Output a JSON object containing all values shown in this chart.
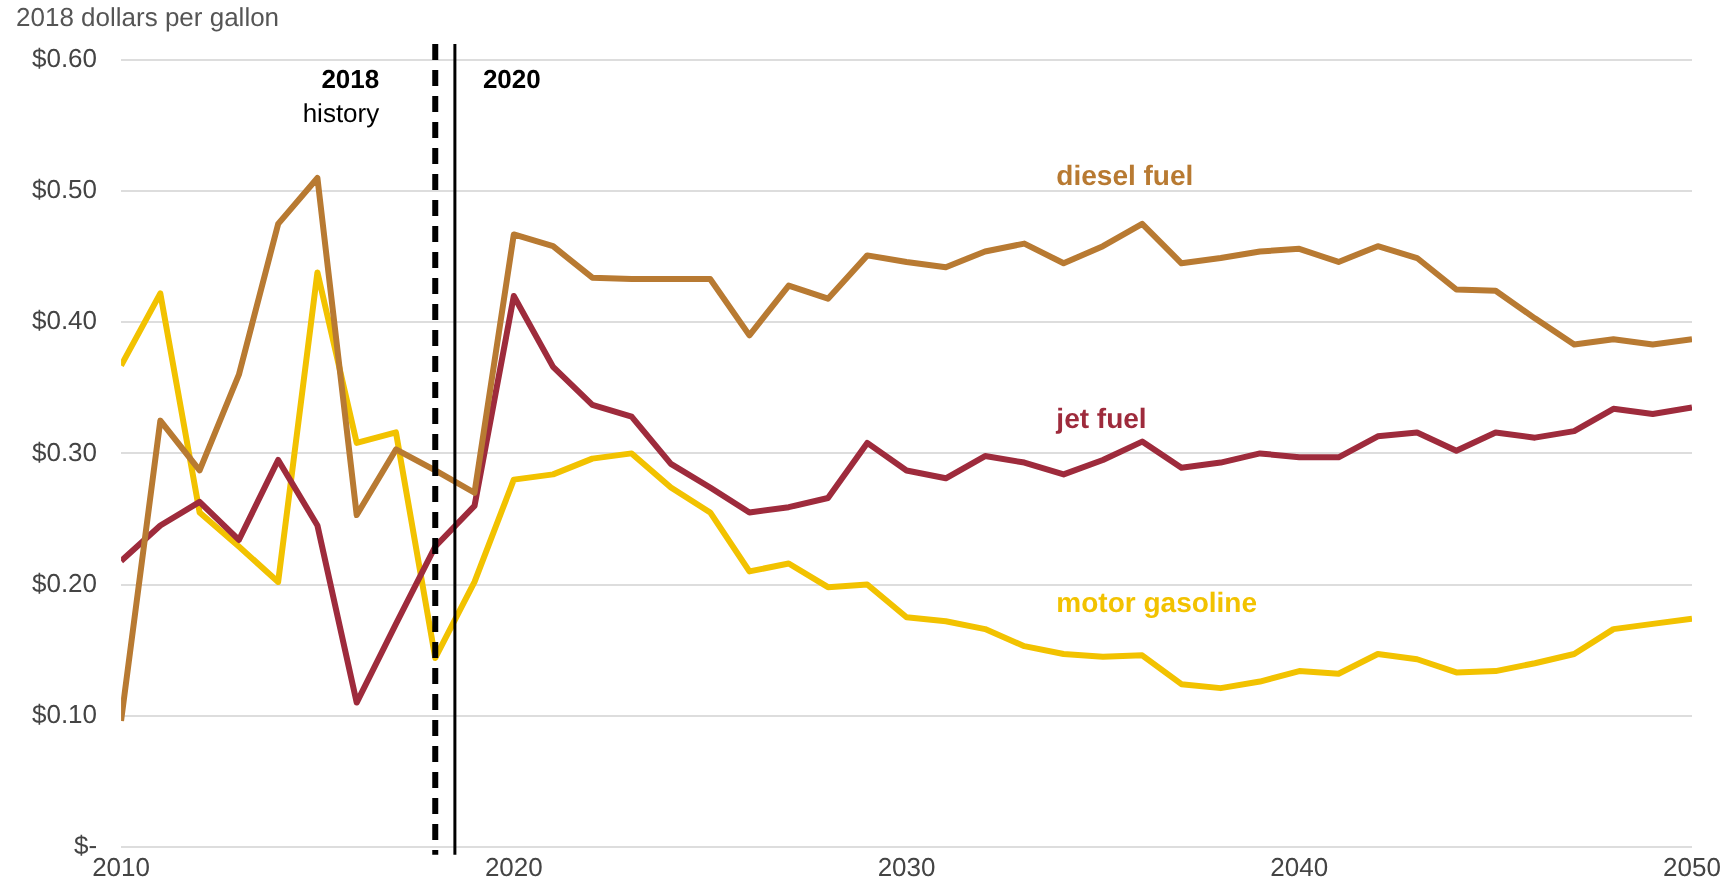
{
  "chart_data": {
    "type": "line",
    "ylabel": "2018 dollars per gallon",
    "x": [
      2010,
      2011,
      2012,
      2013,
      2014,
      2015,
      2016,
      2017,
      2018,
      2019,
      2020,
      2021,
      2022,
      2023,
      2024,
      2025,
      2026,
      2027,
      2028,
      2029,
      2030,
      2031,
      2032,
      2033,
      2034,
      2035,
      2036,
      2037,
      2038,
      2039,
      2040,
      2041,
      2042,
      2043,
      2044,
      2045,
      2046,
      2047,
      2048,
      2049,
      2050
    ],
    "series": [
      {
        "name": "diesel fuel",
        "color": "#b87a32",
        "values": [
          0.096,
          0.325,
          0.287,
          0.36,
          0.475,
          0.51,
          0.253,
          0.303,
          0.287,
          0.27,
          0.467,
          0.458,
          0.434,
          0.433,
          0.433,
          0.433,
          0.39,
          0.428,
          0.418,
          0.451,
          0.446,
          0.442,
          0.454,
          0.46,
          0.445,
          0.458,
          0.475,
          0.445,
          0.449,
          0.454,
          0.456,
          0.446,
          0.458,
          0.449,
          0.425,
          0.424,
          0.403,
          0.383,
          0.387,
          0.383,
          0.387
        ]
      },
      {
        "name": "jet fuel",
        "color": "#9e2b3c",
        "values": [
          0.218,
          0.245,
          0.263,
          0.234,
          0.295,
          0.245,
          0.11,
          0.17,
          0.229,
          0.26,
          0.42,
          0.366,
          0.337,
          0.328,
          0.292,
          0.274,
          0.255,
          0.259,
          0.266,
          0.308,
          0.287,
          0.281,
          0.298,
          0.293,
          0.284,
          0.295,
          0.309,
          0.289,
          0.293,
          0.3,
          0.297,
          0.297,
          0.313,
          0.316,
          0.302,
          0.316,
          0.312,
          0.317,
          0.334,
          0.33,
          0.335
        ]
      },
      {
        "name": "motor gasoline",
        "color": "#f2c200",
        "values": [
          0.367,
          0.422,
          0.255,
          0.229,
          0.202,
          0.438,
          0.308,
          0.316,
          0.144,
          0.202,
          0.28,
          0.284,
          0.296,
          0.3,
          0.274,
          0.255,
          0.21,
          0.216,
          0.198,
          0.2,
          0.175,
          0.172,
          0.166,
          0.153,
          0.147,
          0.145,
          0.146,
          0.124,
          0.121,
          0.126,
          0.134,
          0.132,
          0.147,
          0.143,
          0.133,
          0.134,
          0.14,
          0.147,
          0.166,
          0.17,
          0.174
        ]
      }
    ],
    "xlim": [
      2010,
      2050
    ],
    "xticks": [
      2010,
      2020,
      2030,
      2040,
      2050
    ],
    "ylim": [
      0,
      0.6
    ],
    "yticks": [
      {
        "value": 0,
        "label": "$-"
      },
      {
        "value": 0.1,
        "label": "$0.10"
      },
      {
        "value": 0.2,
        "label": "$0.20"
      },
      {
        "value": 0.3,
        "label": "$0.30"
      },
      {
        "value": 0.4,
        "label": "$0.40"
      },
      {
        "value": 0.5,
        "label": "$0.50"
      },
      {
        "value": 0.6,
        "label": "$0.60"
      }
    ],
    "ref_lines": [
      {
        "axis": "x",
        "value": 2018,
        "label": "2018\nhistory",
        "color": "#000000",
        "line_style": "dashed"
      },
      {
        "axis": "x",
        "value": 2018.5,
        "color": "#000000",
        "line_style": "solid"
      }
    ],
    "annotations": [
      "2020"
    ],
    "grid": "y",
    "legend": false,
    "marker": "none",
    "line_style": "solid"
  }
}
